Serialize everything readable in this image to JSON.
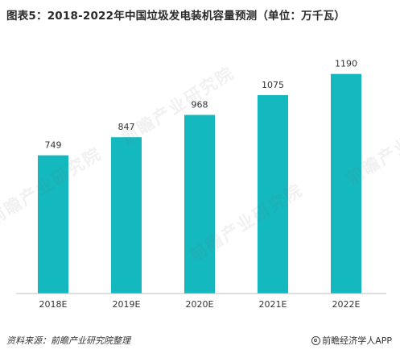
{
  "header": {
    "title": "图表5：2018-2022年中国垃圾发电装机容量预测（单位：万千瓦）"
  },
  "chart_data": {
    "type": "bar",
    "categories": [
      "2018E",
      "2019E",
      "2020E",
      "2021E",
      "2022E"
    ],
    "values": [
      749,
      847,
      968,
      1075,
      1190
    ],
    "data_labels": [
      "749",
      "847",
      "968",
      "1075",
      "1190"
    ],
    "title": "图表5：2018-2022年中国垃圾发电装机容量预测（单位：万千瓦）",
    "xlabel": "",
    "ylabel": "",
    "ylim": [
      0,
      1250
    ],
    "bar_color": "#14b8bf",
    "axis_color": "#bfbfbf",
    "grid": false,
    "legend": "none"
  },
  "footer": {
    "source": "资料来源：前瞻产业研究院整理",
    "brand": "前瞻经济学人APP"
  },
  "watermark": {
    "text": "前瞻产业研究院",
    "color": "#dddddd"
  }
}
